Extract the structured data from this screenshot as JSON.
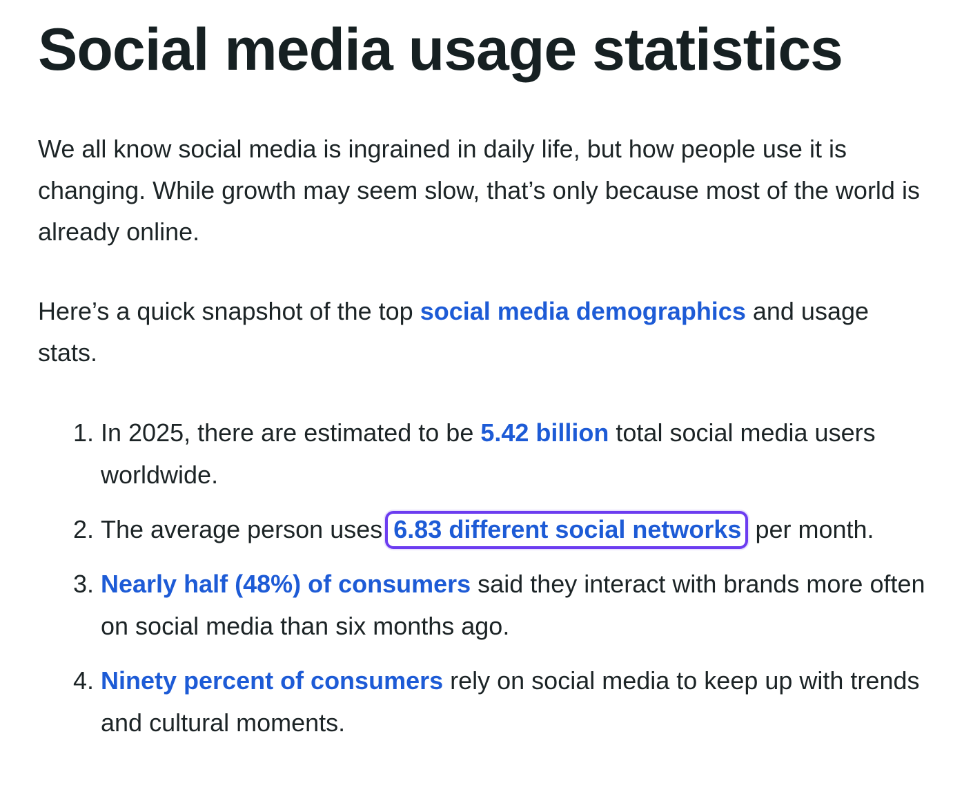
{
  "page_title": "Social media usage statistics",
  "intro": "We all know social media is ingrained in daily life, but how people use it is changing. While growth may seem slow, that’s only because most of the world is already online.",
  "snapshot": {
    "before": "Here’s a quick snapshot of the top ",
    "link": "social media demographics",
    "after": " and usage stats."
  },
  "stats": [
    {
      "before": "In 2025, there are estimated to be ",
      "link": "5.42 billion",
      "after": " total social media users worldwide."
    },
    {
      "before": "The average person uses ",
      "link": "6.83 different social networks",
      "after": " per month."
    },
    {
      "before": "",
      "link": "Nearly half (48%) of consumers",
      "after": " said they interact with brands more often on social media than six months ago."
    },
    {
      "before": "",
      "link": "Ninety percent of consumers",
      "after": " rely on social media to keep up with trends and cultural moments."
    }
  ],
  "colors": {
    "text": "#1c2426",
    "link": "#1d5bd6",
    "highlight_border": "#6c3cf0"
  }
}
